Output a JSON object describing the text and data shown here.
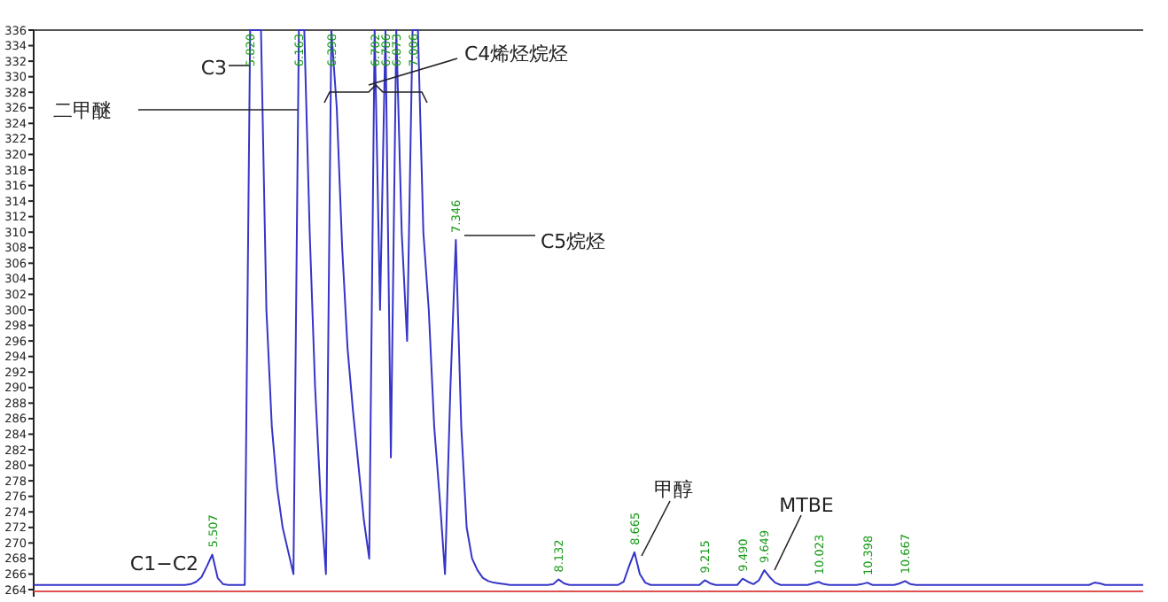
{
  "chart_data": {
    "type": "line",
    "ylim": [
      264,
      336
    ],
    "yticks": [
      264,
      266,
      268,
      270,
      272,
      274,
      276,
      278,
      280,
      282,
      284,
      286,
      288,
      290,
      292,
      294,
      296,
      298,
      300,
      302,
      304,
      306,
      308,
      310,
      312,
      314,
      316,
      318,
      320,
      322,
      324,
      326,
      328,
      330,
      332,
      334,
      336
    ],
    "tick_labels": "y",
    "marker": "none",
    "line_style": "solid",
    "categories": [
      null,
      null,
      null,
      null,
      null,
      null,
      null,
      null,
      null,
      null,
      null,
      null,
      null,
      null,
      null,
      null,
      null,
      null,
      null,
      null,
      null,
      null,
      null,
      null,
      null,
      null,
      null,
      null,
      null,
      null,
      null,
      null,
      null,
      null,
      null,
      null,
      null,
      null,
      null,
      null,
      null,
      null,
      null,
      null,
      null,
      null,
      null,
      null,
      null,
      null,
      null,
      null,
      null,
      null,
      null,
      null,
      null,
      null,
      null,
      null,
      null,
      null,
      null,
      null,
      null,
      null,
      null,
      null,
      null,
      null,
      null,
      null,
      null,
      null,
      null,
      null,
      null,
      null,
      null,
      null,
      null,
      null,
      null,
      null,
      null,
      null,
      null,
      null,
      null,
      null,
      null,
      null,
      null,
      null,
      null,
      null,
      null,
      null,
      null,
      null,
      null,
      null,
      null,
      null,
      null,
      null,
      null,
      null,
      null,
      null,
      null,
      null,
      null,
      null,
      null,
      null,
      null,
      null,
      null,
      null,
      null,
      null,
      null,
      null,
      null,
      null,
      null,
      null,
      null,
      null,
      null,
      null,
      null,
      null,
      null,
      null,
      null,
      null,
      null,
      null,
      null,
      null,
      null,
      null,
      null,
      null,
      null,
      null,
      null,
      null,
      null,
      null,
      null,
      null,
      null,
      null,
      null,
      null,
      null,
      null,
      null,
      null,
      null,
      null,
      null,
      null,
      null,
      null,
      null,
      null,
      null,
      null,
      null,
      null,
      null,
      null,
      null,
      null,
      null,
      null,
      null,
      null,
      null,
      null,
      null,
      null,
      null,
      null,
      null,
      null,
      null,
      null,
      null,
      null,
      null,
      null,
      null,
      null,
      null,
      null,
      null,
      null,
      null,
      null,
      null,
      null
    ],
    "series": [
      {
        "color": "#3535c8",
        "values": [
          264.6,
          264.6,
          264.6,
          264.6,
          264.6,
          264.6,
          264.6,
          264.6,
          264.6,
          264.6,
          264.6,
          264.6,
          264.6,
          264.6,
          264.6,
          264.6,
          264.6,
          264.6,
          264.6,
          264.6,
          264.6,
          264.6,
          264.6,
          264.6,
          264.6,
          264.6,
          264.6,
          264.6,
          264.6,
          264.7,
          265,
          265.6,
          267,
          268.5,
          265.5,
          264.7,
          264.6,
          264.6,
          264.6,
          264.6,
          336,
          336,
          336,
          300,
          285,
          277,
          272,
          269,
          266,
          336,
          336,
          310,
          290,
          276,
          266,
          336,
          326,
          308,
          295,
          287,
          280,
          273,
          268,
          336,
          300,
          336,
          281,
          336,
          310,
          296,
          336,
          336,
          310,
          300,
          285,
          276,
          266,
          290,
          309,
          285,
          272,
          268,
          266.5,
          265.5,
          265.1,
          264.9,
          264.8,
          264.7,
          264.6,
          264.6,
          264.6,
          264.6,
          264.6,
          264.6,
          264.6,
          264.6,
          264.7,
          265.3,
          264.8,
          264.6,
          264.6,
          264.6,
          264.6,
          264.6,
          264.6,
          264.6,
          264.6,
          264.6,
          264.6,
          265,
          267,
          268.8,
          266,
          264.9,
          264.6,
          264.6,
          264.6,
          264.6,
          264.6,
          264.6,
          264.6,
          264.6,
          264.6,
          264.6,
          265.2,
          264.8,
          264.6,
          264.6,
          264.6,
          264.6,
          264.6,
          265.4,
          265,
          264.7,
          265.2,
          266.5,
          265.6,
          264.9,
          264.6,
          264.6,
          264.6,
          264.6,
          264.6,
          264.6,
          264.8,
          265,
          264.7,
          264.6,
          264.6,
          264.6,
          264.6,
          264.6,
          264.6,
          264.7,
          264.9,
          264.6,
          264.6,
          264.6,
          264.6,
          264.6,
          264.8,
          265.1,
          264.7,
          264.6,
          264.6,
          264.6,
          264.6,
          264.6,
          264.6,
          264.6,
          264.6,
          264.6,
          264.6,
          264.6,
          264.6,
          264.6,
          264.6,
          264.6,
          264.6,
          264.6,
          264.6,
          264.6,
          264.6,
          264.6,
          264.6,
          264.6,
          264.6,
          264.6,
          264.6,
          264.6,
          264.6,
          264.6,
          264.6,
          264.6,
          264.6,
          264.6,
          264.9,
          264.8,
          264.6,
          264.6,
          264.6,
          264.6,
          264.6,
          264.6,
          264.6,
          264.6
        ]
      }
    ],
    "annotations": [
      "C3",
      "二甲醚",
      "C4烯烃烷烃",
      "C5烷烃",
      "甲醇",
      "MTBE",
      "C1−C2",
      "5.507",
      "5.820",
      "6.163",
      "6.398",
      "6.702",
      "6.786",
      "6.873",
      "7.006",
      "7.346",
      "8.132",
      "8.665",
      "9.215",
      "9.490",
      "9.649",
      "10.023",
      "10.398",
      "10.667"
    ]
  }
}
